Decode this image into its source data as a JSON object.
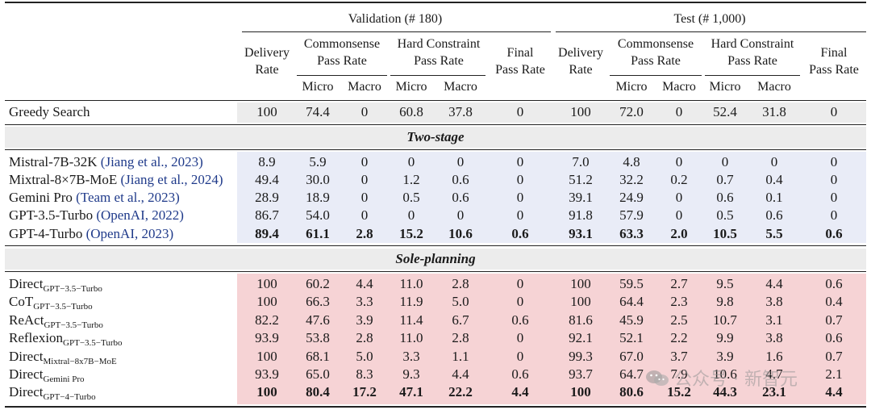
{
  "header": {
    "validation_label": "Validation (# 180)",
    "test_label": "Test (# 1,000)",
    "delivery_rate": [
      "Delivery",
      "Rate"
    ],
    "commonsense_pass_rate": [
      "Commonsense",
      "Pass Rate"
    ],
    "hard_constraint_pass_rate": [
      "Hard Constraint",
      "Pass Rate"
    ],
    "final_pass_rate": [
      "Final",
      "Pass Rate"
    ],
    "micro": "Micro",
    "macro": "Macro"
  },
  "baseline": {
    "name": "Greedy Search",
    "values": [
      "100",
      "74.4",
      "0",
      "60.8",
      "37.8",
      "0",
      "100",
      "72.0",
      "0",
      "52.4",
      "31.8",
      "0"
    ]
  },
  "sections": [
    {
      "title": "Two-stage",
      "rows": [
        {
          "name": "Mistral-7B-32K",
          "cite": "(Jiang et al., 2023)",
          "values": [
            "8.9",
            "5.9",
            "0",
            "0",
            "0",
            "0",
            "7.0",
            "4.8",
            "0",
            "0",
            "0",
            "0"
          ]
        },
        {
          "name": "Mixtral-8×7B-MoE",
          "cite": "(Jiang et al., 2024)",
          "values": [
            "49.4",
            "30.0",
            "0",
            "1.2",
            "0.6",
            "0",
            "51.2",
            "32.2",
            "0.2",
            "0.7",
            "0.4",
            "0"
          ]
        },
        {
          "name": "Gemini Pro",
          "cite": "(Team et al., 2023)",
          "values": [
            "28.9",
            "18.9",
            "0",
            "0.5",
            "0.6",
            "0",
            "39.1",
            "24.9",
            "0",
            "0.6",
            "0.1",
            "0"
          ]
        },
        {
          "name": "GPT-3.5-Turbo",
          "cite": "(OpenAI, 2022)",
          "values": [
            "86.7",
            "54.0",
            "0",
            "0",
            "0",
            "0",
            "91.8",
            "57.9",
            "0",
            "0.5",
            "0.6",
            "0"
          ]
        },
        {
          "name": "GPT-4-Turbo",
          "cite": "(OpenAI, 2023)",
          "bold": true,
          "values": [
            "89.4",
            "61.1",
            "2.8",
            "15.2",
            "10.6",
            "0.6",
            "93.1",
            "63.3",
            "2.0",
            "10.5",
            "5.5",
            "0.6"
          ]
        }
      ]
    },
    {
      "title": "Sole-planning",
      "rows": [
        {
          "name": "Direct",
          "sub": "GPT−3.5−Turbo",
          "values": [
            "100",
            "60.2",
            "4.4",
            "11.0",
            "2.8",
            "0",
            "100",
            "59.5",
            "2.7",
            "9.5",
            "4.4",
            "0.6"
          ]
        },
        {
          "name": "CoT",
          "sub": "GPT−3.5−Turbo",
          "values": [
            "100",
            "66.3",
            "3.3",
            "11.9",
            "5.0",
            "0",
            "100",
            "64.4",
            "2.3",
            "9.8",
            "3.8",
            "0.4"
          ]
        },
        {
          "name": "ReAct",
          "sub": "GPT−3.5−Turbo",
          "values": [
            "82.2",
            "47.6",
            "3.9",
            "11.4",
            "6.7",
            "0.6",
            "81.6",
            "45.9",
            "2.5",
            "10.7",
            "3.1",
            "0.7"
          ]
        },
        {
          "name": "Reflexion",
          "sub": "GPT−3.5−Turbo",
          "values": [
            "93.9",
            "53.8",
            "2.8",
            "11.0",
            "2.8",
            "0",
            "92.1",
            "52.1",
            "2.2",
            "9.9",
            "3.8",
            "0.6"
          ]
        },
        {
          "name": "Direct",
          "sub": "Mixtral−8x7B−MoE",
          "values": [
            "100",
            "68.1",
            "5.0",
            "3.3",
            "1.1",
            "0",
            "99.3",
            "67.0",
            "3.7",
            "3.9",
            "1.6",
            "0.7"
          ]
        },
        {
          "name": "Direct",
          "sub": "Gemini Pro",
          "values": [
            "93.9",
            "65.0",
            "8.3",
            "9.3",
            "4.4",
            "0.6",
            "93.7",
            "64.7",
            "7.9",
            "10.6",
            "4.7",
            "2.1"
          ]
        },
        {
          "name": "Direct",
          "sub": "GPT−4−Turbo",
          "bold": true,
          "values": [
            "100",
            "80.4",
            "17.2",
            "47.1",
            "22.2",
            "4.4",
            "100",
            "80.6",
            "15.2",
            "44.3",
            "23.1",
            "4.4"
          ]
        }
      ]
    }
  ],
  "watermark": "公众号 · 新智元",
  "colors": {
    "baseline_band": "#ececec",
    "two_stage_band": "#e9ecf7",
    "sole_planning_band": "#f6d3d5"
  }
}
